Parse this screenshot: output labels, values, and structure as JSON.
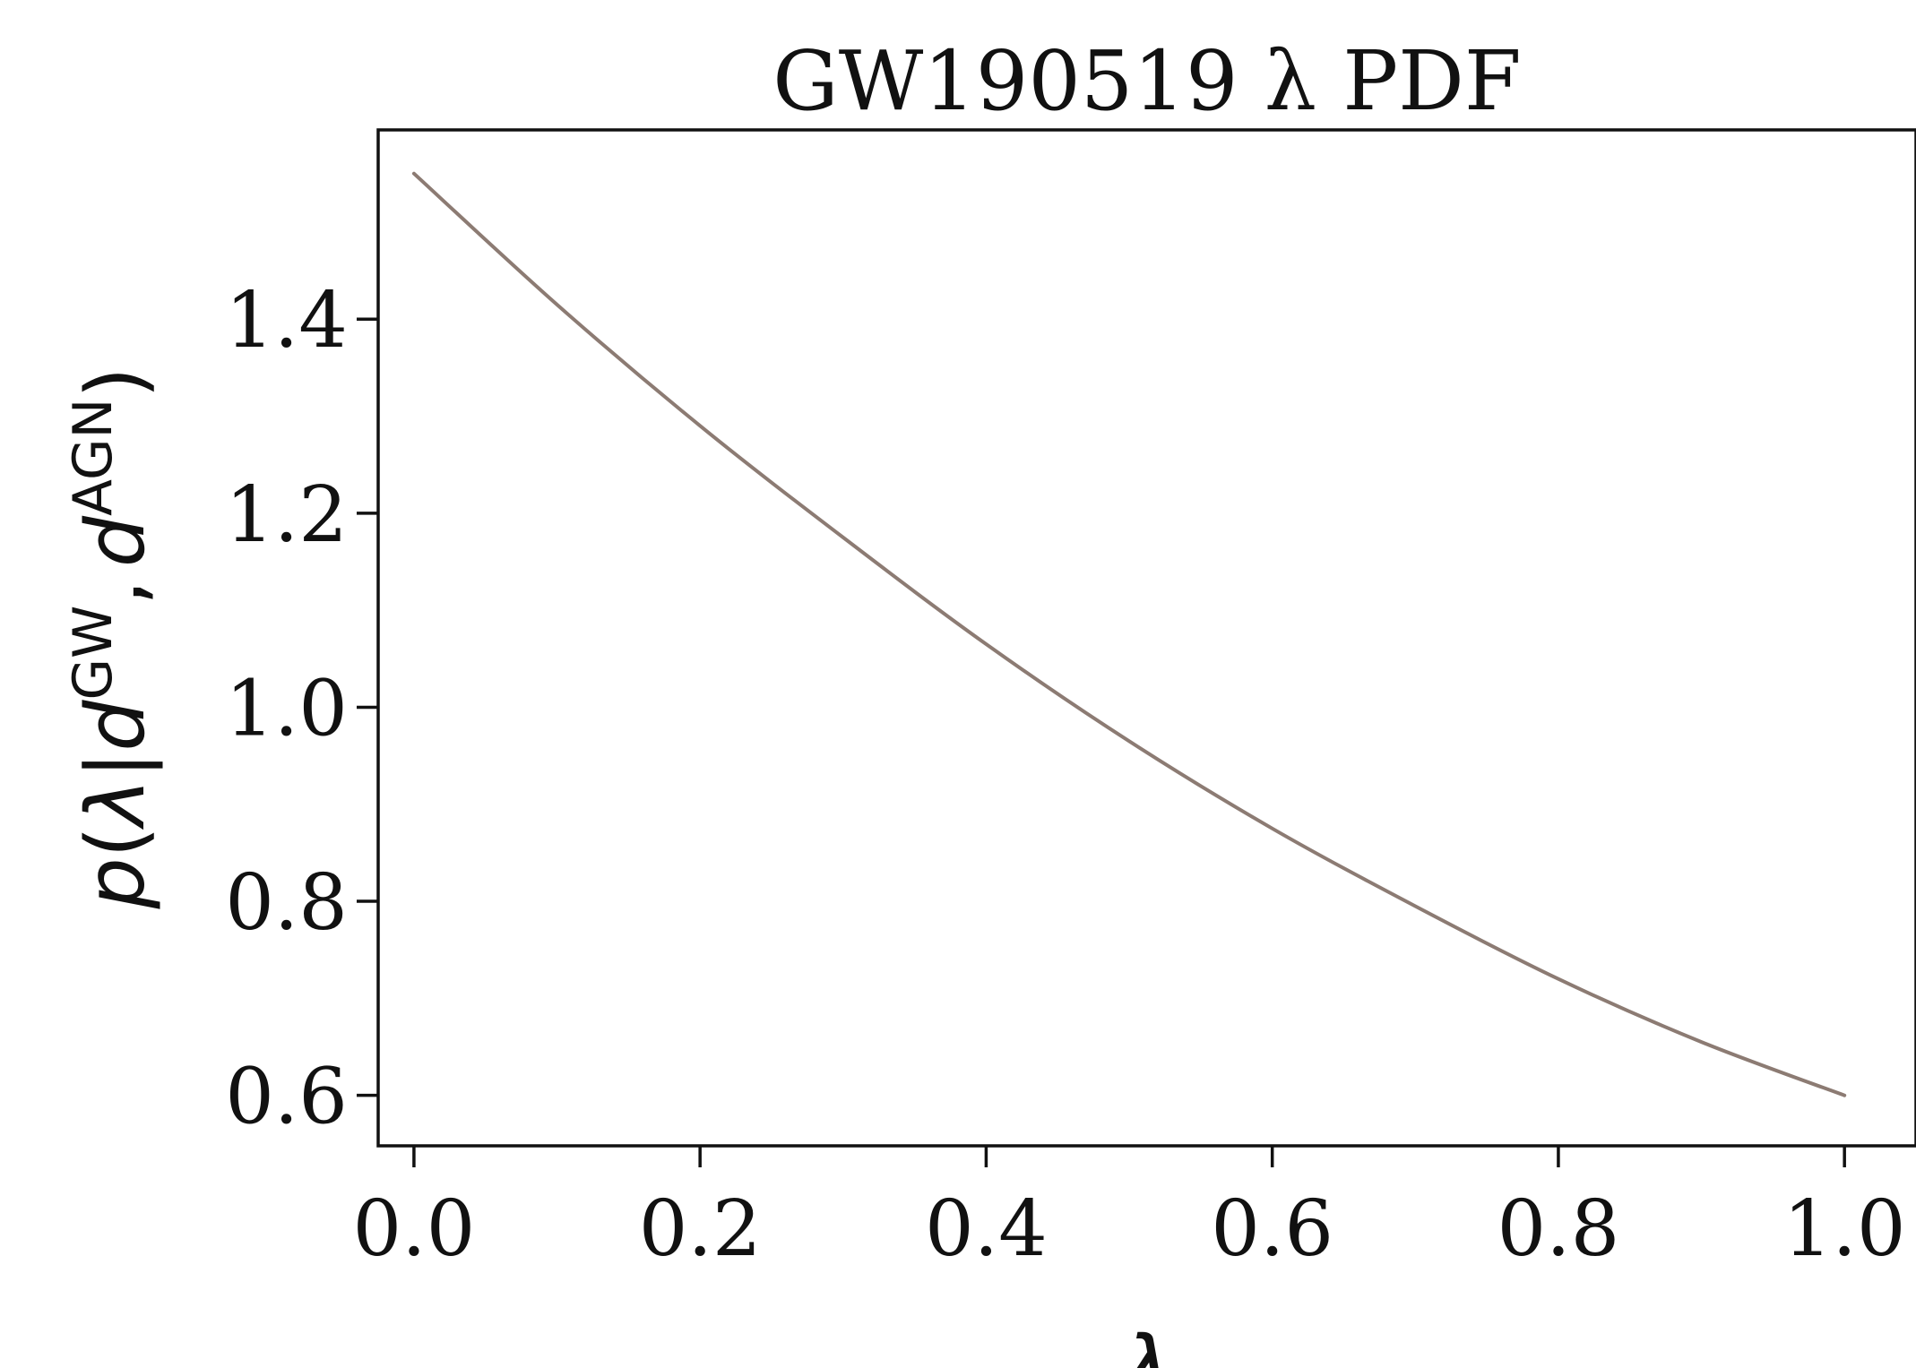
{
  "chart_data": {
    "type": "line",
    "title": "GW190519 λ PDF",
    "xlabel": "λ",
    "ylabel": "p(λ|dGW, dAGN)",
    "ylabel_parts": {
      "p": "p",
      "open": "(",
      "lam": "λ",
      "bar": "|",
      "d1": "d",
      "sup1": "GW",
      "comma": ",",
      "d2": "d",
      "sup2": "AGN",
      "close": ")"
    },
    "xlim": [
      -0.025,
      1.05
    ],
    "ylim": [
      0.548,
      1.595
    ],
    "xticks": [
      0.0,
      0.2,
      0.4,
      0.6,
      0.8,
      1.0
    ],
    "xtick_labels": [
      "0.0",
      "0.2",
      "0.4",
      "0.6",
      "0.8",
      "1.0"
    ],
    "yticks": [
      0.6,
      0.8,
      1.0,
      1.2,
      1.4
    ],
    "ytick_labels": [
      "0.6",
      "0.8",
      "1.0",
      "1.2",
      "1.4"
    ],
    "grid": false,
    "line_color": "#8c7b73",
    "series": [
      {
        "x": [
          0.0,
          0.1,
          0.2,
          0.3,
          0.4,
          0.5,
          0.6,
          0.7,
          0.8,
          0.9,
          1.0
        ],
        "y": [
          1.55,
          1.415,
          1.29,
          1.175,
          1.065,
          0.965,
          0.875,
          0.795,
          0.72,
          0.655,
          0.6
        ]
      }
    ]
  }
}
